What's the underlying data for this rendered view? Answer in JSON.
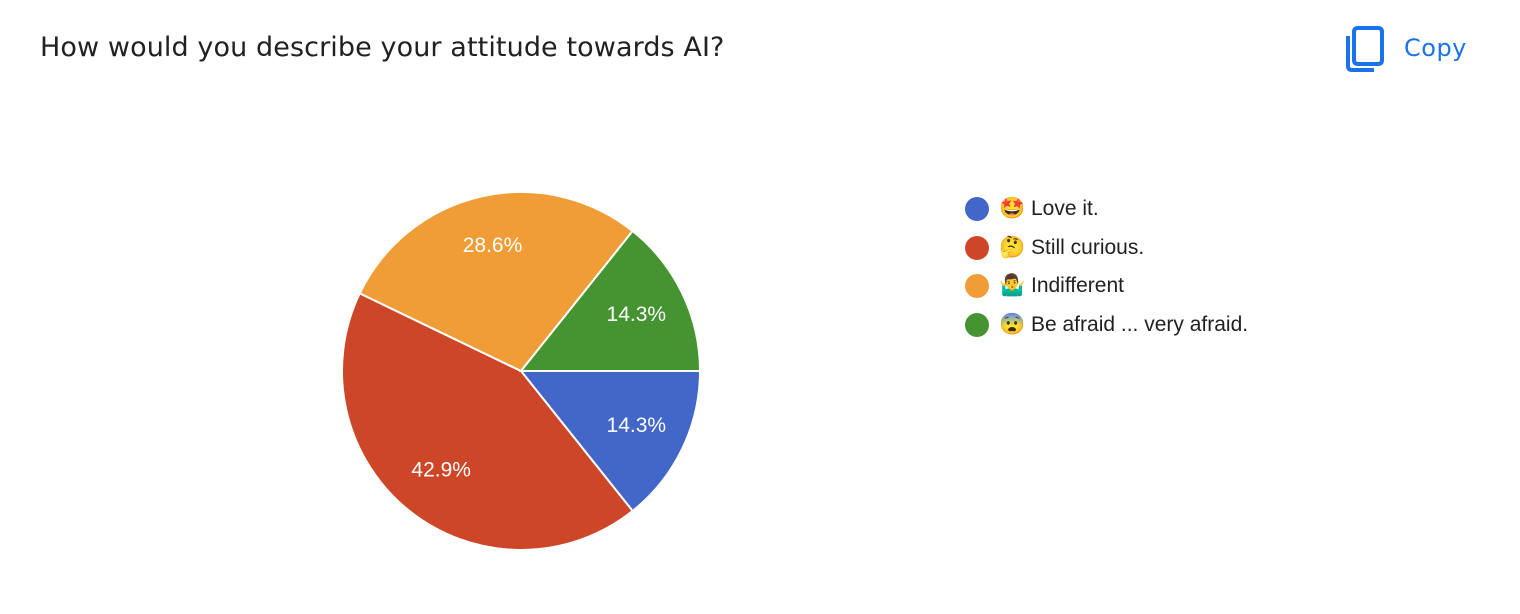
{
  "question": {
    "title": "How would you describe your attitude towards AI?"
  },
  "toolbar": {
    "copy_label": "Copy",
    "copy_icon": "copy-icon",
    "accent_color": "#1a73e8"
  },
  "chart_data": {
    "type": "pie",
    "slices": [
      {
        "label": "🤩 Love it.",
        "value": 14.3,
        "display": "14.3%",
        "color": "#4267c8"
      },
      {
        "label": "🤔 Still curious.",
        "value": 42.9,
        "display": "42.9%",
        "color": "#cd4628"
      },
      {
        "label": "🤷‍♂️ Indifferent",
        "value": 28.6,
        "display": "28.6%",
        "color": "#f09d38"
      },
      {
        "label": "😨 Be afraid ... very afraid.",
        "value": 14.3,
        "display": "14.3%",
        "color": "#459431"
      }
    ],
    "legend_position": "right"
  }
}
